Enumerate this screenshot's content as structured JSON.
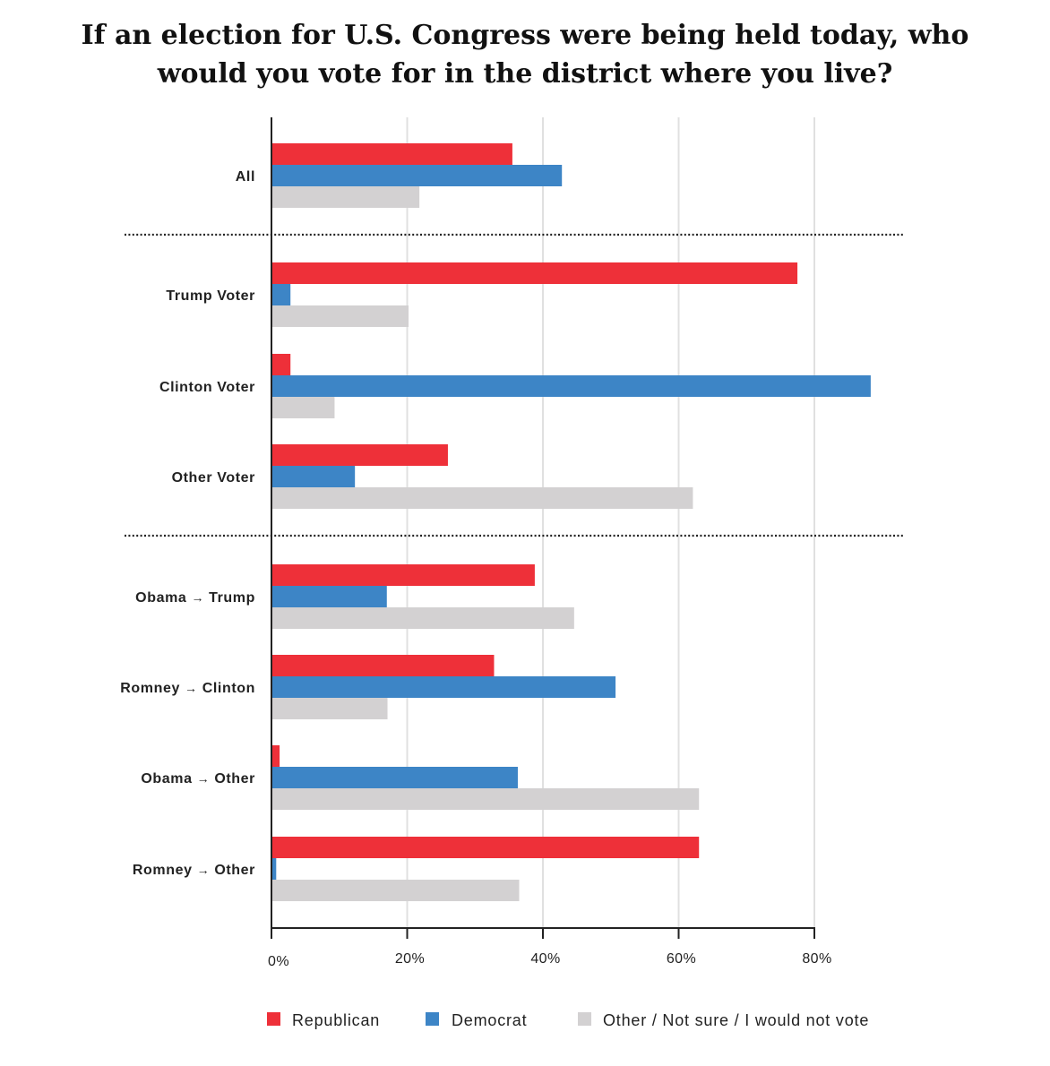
{
  "chart_data": {
    "type": "bar",
    "orientation": "horizontal",
    "title_lines": [
      "If an election for U.S. Congress were being held today, who",
      "would you vote for in the district where you live?"
    ],
    "categories": [
      "All",
      "Trump Voter",
      "Clinton Voter",
      "Other Voter",
      "Obama → Trump",
      "Romney → Clinton",
      "Obama → Other",
      "Romney → Other"
    ],
    "series": [
      {
        "name": "Republican",
        "color": "#ee3039",
        "values": [
          35.5,
          77.5,
          2.8,
          26,
          38.8,
          32.8,
          1.2,
          63
        ]
      },
      {
        "name": "Democrat",
        "color": "#3d85c6",
        "values": [
          42.8,
          2.8,
          88.3,
          12.3,
          17,
          50.7,
          36.3,
          0.7
        ]
      },
      {
        "name": "Other / Not sure / I would not vote",
        "color": "#d3d1d2",
        "values": [
          21.8,
          20.2,
          9.3,
          62.1,
          44.6,
          17.1,
          63,
          36.5
        ]
      }
    ],
    "xlim": [
      0,
      80
    ],
    "xticks": [
      0,
      20,
      40,
      60,
      80
    ],
    "xtick_labels": [
      "0%",
      "20%",
      "40%",
      "60%",
      "80%"
    ],
    "grid": true,
    "separators_after_categories": [
      "All",
      "Other Voter"
    ],
    "legend_position": "bottom"
  }
}
